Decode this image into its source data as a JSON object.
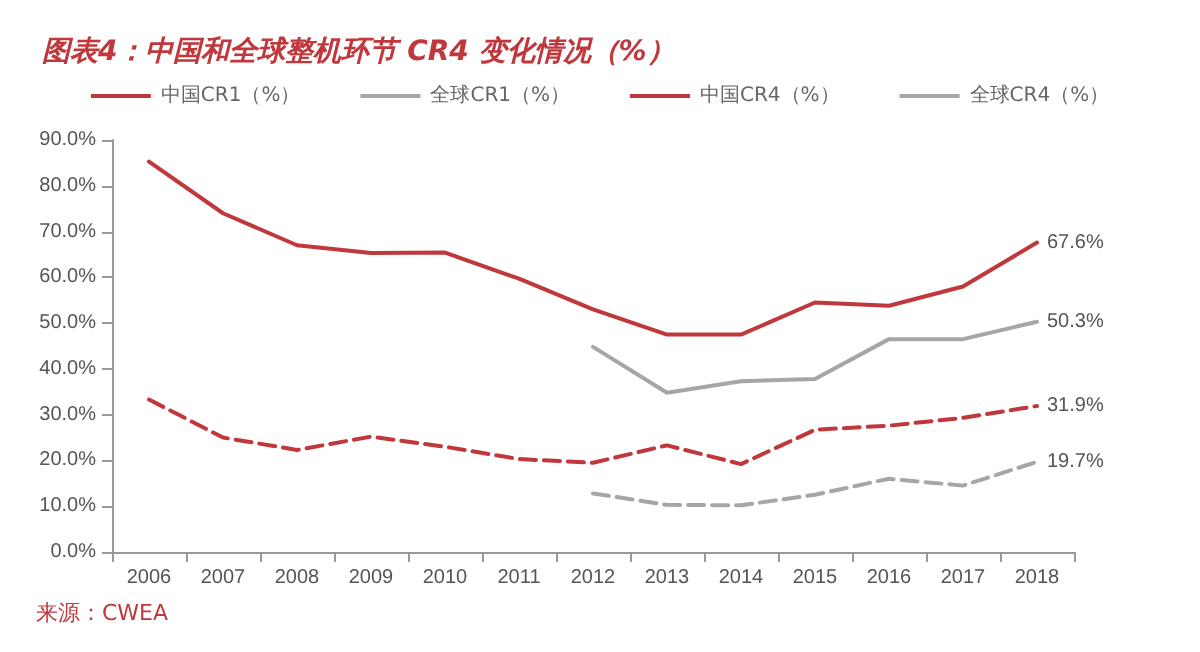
{
  "chart_data": {
    "type": "line",
    "title": "图表4：中国和全球整机环节 CR4 变化情况（%）",
    "categories": [
      "2006",
      "2007",
      "2008",
      "2009",
      "2010",
      "2011",
      "2012",
      "2013",
      "2014",
      "2015",
      "2016",
      "2017",
      "2018"
    ],
    "series": [
      {
        "name": "中国CR1（%）",
        "color": "#c0383c",
        "line_style": "dashed",
        "values": [
          33.3,
          25,
          22.3,
          25.2,
          23,
          20.3,
          19.5,
          23.3,
          19.2,
          26.7,
          27.6,
          29.3,
          31.9
        ],
        "value_labels": [
          null,
          null,
          null,
          null,
          null,
          null,
          null,
          null,
          null,
          null,
          null,
          null,
          "31.9%"
        ]
      },
      {
        "name": "全球CR1（%）",
        "color": "#a6a6a6",
        "line_style": "dashed",
        "values": [
          null,
          null,
          null,
          null,
          null,
          null,
          12.8,
          10.3,
          10.2,
          12.5,
          16,
          14.5,
          19.7
        ],
        "value_labels": [
          null,
          null,
          null,
          null,
          null,
          null,
          null,
          null,
          null,
          null,
          null,
          null,
          "19.7%"
        ]
      },
      {
        "name": "中国CR4（%）",
        "color": "#c0383c",
        "line_style": "solid",
        "values": [
          85.3,
          74,
          67,
          65.3,
          65.4,
          59.7,
          53,
          47.5,
          47.5,
          54.5,
          53.8,
          58,
          67.6
        ],
        "value_labels": [
          null,
          null,
          null,
          null,
          null,
          null,
          null,
          null,
          null,
          null,
          null,
          null,
          "67.6%"
        ]
      },
      {
        "name": "全球CR4（%）",
        "color": "#a6a6a6",
        "line_style": "solid",
        "values": [
          null,
          null,
          null,
          null,
          null,
          null,
          44.8,
          34.8,
          37.3,
          37.8,
          46.5,
          46.5,
          50.3
        ],
        "value_labels": [
          null,
          null,
          null,
          null,
          null,
          null,
          null,
          null,
          null,
          null,
          null,
          null,
          "50.3%"
        ]
      }
    ],
    "ylim": [
      0,
      90
    ],
    "yticks": [
      {
        "value": 0,
        "label": "0.0%"
      },
      {
        "value": 10,
        "label": "10.0%"
      },
      {
        "value": 20,
        "label": "20.0%"
      },
      {
        "value": 30,
        "label": "30.0%"
      },
      {
        "value": 40,
        "label": "40.0%"
      },
      {
        "value": 50,
        "label": "50.0%"
      },
      {
        "value": 60,
        "label": "60.0%"
      },
      {
        "value": 70,
        "label": "70.0%"
      },
      {
        "value": 80,
        "label": "80.0%"
      },
      {
        "value": 90,
        "label": "90.0%"
      }
    ],
    "grid": false,
    "legend": "top",
    "marker": "none",
    "annotations": [
      "来源：CWEA"
    ]
  }
}
